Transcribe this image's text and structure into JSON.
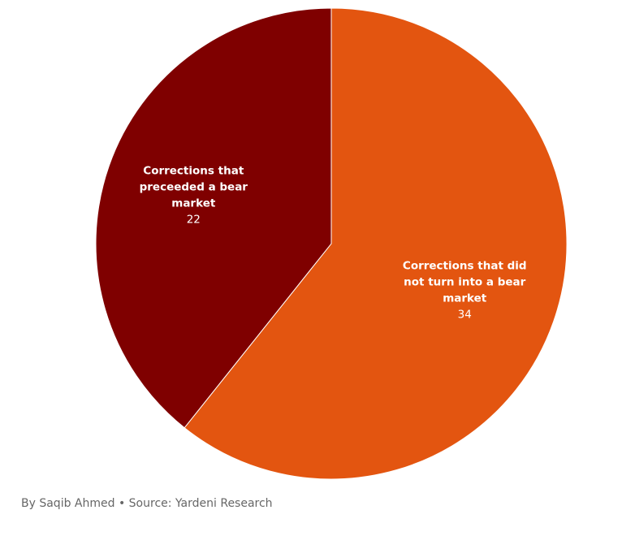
{
  "chart_data": {
    "type": "pie",
    "slices": [
      {
        "label_lines": [
          "Corrections that did",
          "not turn into a bear",
          "market"
        ],
        "value": 34,
        "value_label": "34",
        "color": "#E35510"
      },
      {
        "label_lines": [
          "Corrections that",
          "preceeded a bear",
          "market"
        ],
        "value": 22,
        "value_label": "22",
        "color": "#7F0000"
      }
    ]
  },
  "footer": {
    "credit": "By Saqib Ahmed • Source: Yardeni Research"
  }
}
